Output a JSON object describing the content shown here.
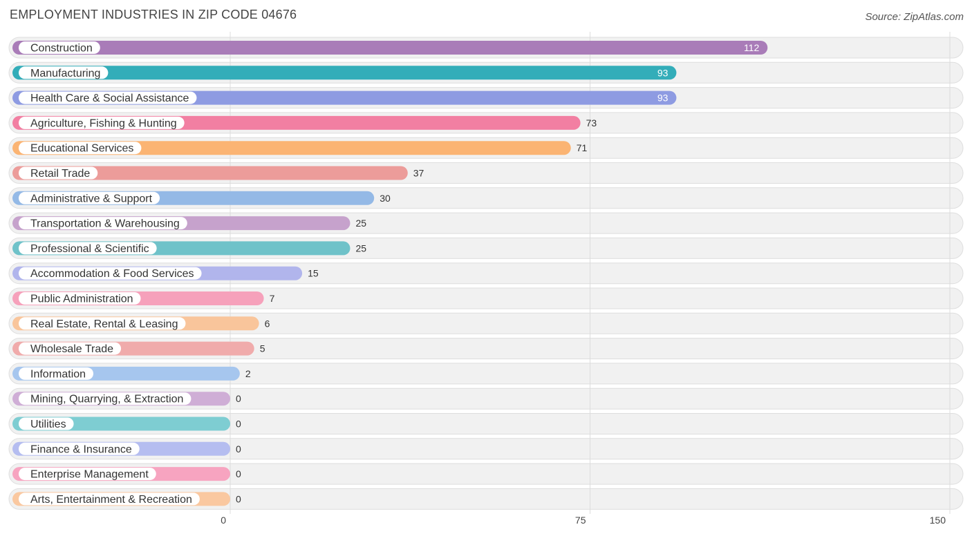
{
  "header": {
    "title": "EMPLOYMENT INDUSTRIES IN ZIP CODE 04676",
    "source": "Source: ZipAtlas.com"
  },
  "chart_data": {
    "type": "bar",
    "orientation": "horizontal",
    "title": "EMPLOYMENT INDUSTRIES IN ZIP CODE 04676",
    "xlabel": "",
    "ylabel": "",
    "xlim": [
      0,
      150
    ],
    "ticks": [
      0,
      75,
      150
    ],
    "tick_labels": [
      "0",
      "75",
      "150"
    ],
    "grid": true,
    "legend": "none",
    "categories": [
      "Construction",
      "Manufacturing",
      "Health Care & Social Assistance",
      "Agriculture, Fishing & Hunting",
      "Educational Services",
      "Retail Trade",
      "Administrative & Support",
      "Transportation & Warehousing",
      "Professional & Scientific",
      "Accommodation & Food Services",
      "Public Administration",
      "Real Estate, Rental & Leasing",
      "Wholesale Trade",
      "Information",
      "Mining, Quarrying, & Extraction",
      "Utilities",
      "Finance & Insurance",
      "Enterprise Management",
      "Arts, Entertainment & Recreation"
    ],
    "values": [
      112,
      93,
      93,
      73,
      71,
      37,
      30,
      25,
      25,
      15,
      7,
      6,
      5,
      2,
      0,
      0,
      0,
      0,
      0
    ],
    "value_labels": [
      "112",
      "93",
      "93",
      "73",
      "71",
      "37",
      "30",
      "25",
      "25",
      "15",
      "7",
      "6",
      "5",
      "2",
      "0",
      "0",
      "0",
      "0",
      "0"
    ],
    "colors": [
      "#a97cb8",
      "#33adb9",
      "#8e9be2",
      "#f27fa2",
      "#fbb473",
      "#ec9c9a",
      "#94b9e6",
      "#c6a2cc",
      "#6fc2c9",
      "#b1b5ec",
      "#f6a1bb",
      "#f9c59b",
      "#f0abab",
      "#a6c6ee",
      "#cfaed6",
      "#7ecdd2",
      "#b5bdf0",
      "#f7a4c0",
      "#fac8a0"
    ]
  }
}
